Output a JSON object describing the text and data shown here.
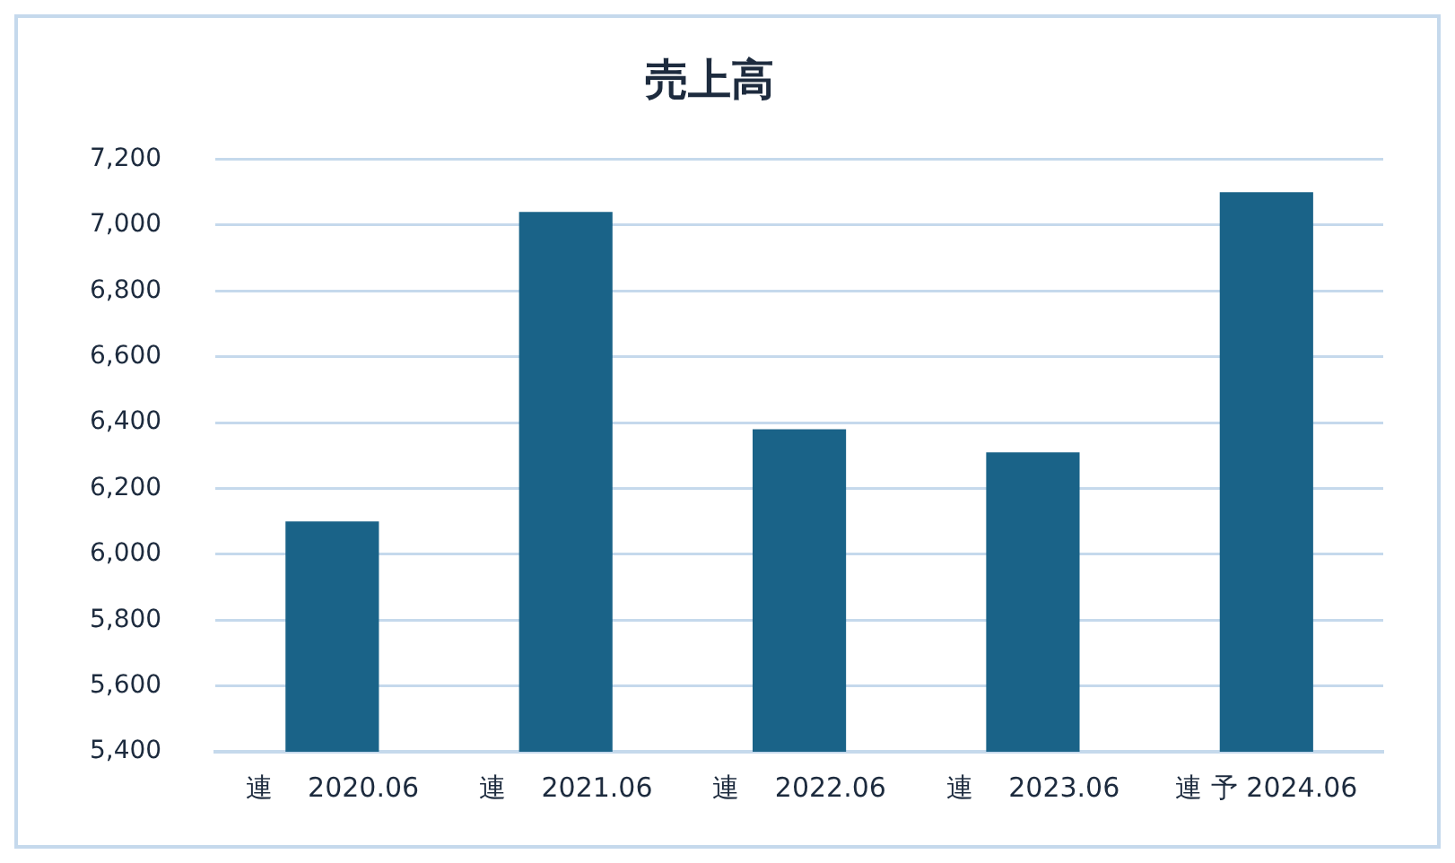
{
  "chart_data": {
    "type": "bar",
    "title": "売上高",
    "categories": [
      "連　 2020.06",
      "連　 2021.06",
      "連　 2022.06",
      "連　 2023.06",
      "連 予 2024.06"
    ],
    "values": [
      6100,
      7040,
      6380,
      6310,
      7100
    ],
    "color": "#1a6388",
    "ylim": [
      5400,
      7200
    ],
    "yticks": [
      {
        "value": 5400,
        "label": "5,400"
      },
      {
        "value": 5600,
        "label": "5,600"
      },
      {
        "value": 5800,
        "label": "5,800"
      },
      {
        "value": 6000,
        "label": "6,000"
      },
      {
        "value": 6200,
        "label": "6,200"
      },
      {
        "value": 6400,
        "label": "6,400"
      },
      {
        "value": 6600,
        "label": "6,600"
      },
      {
        "value": 6800,
        "label": "6,800"
      },
      {
        "value": 7000,
        "label": "7,000"
      },
      {
        "value": 7200,
        "label": "7,200"
      }
    ],
    "grid": "y",
    "legend": false
  }
}
